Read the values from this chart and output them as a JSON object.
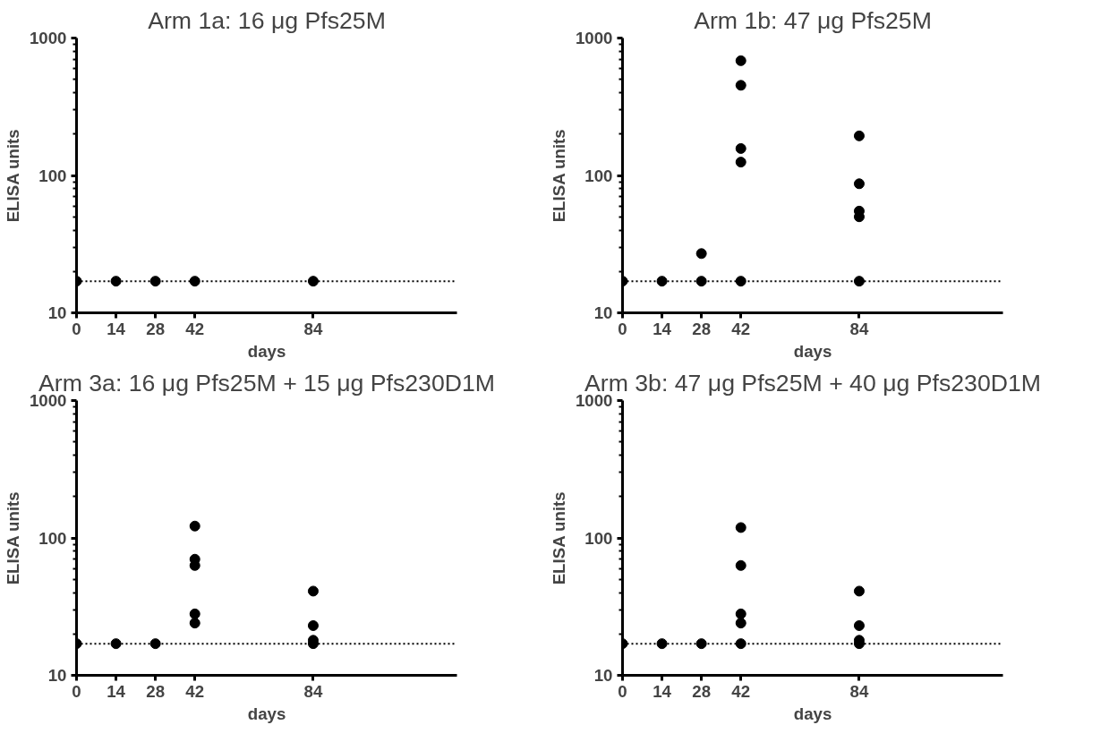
{
  "chart_data": [
    {
      "type": "scatter",
      "title": "Arm 1a: 16 μg Pfs25M",
      "xlabel": "days",
      "ylabel": "ELISA units",
      "log": "y",
      "grid": false,
      "marker": "circle",
      "xlim": [
        0,
        135
      ],
      "xticks": [
        0,
        14,
        28,
        42,
        84
      ],
      "ylim": [
        10,
        1000
      ],
      "yticks": [
        10,
        100,
        1000
      ],
      "series": [
        {
          "color": "#000000",
          "x": [
            0,
            14,
            28,
            42,
            84
          ],
          "values": [
            17,
            17,
            17,
            17,
            17
          ]
        }
      ],
      "ref_lines": [
        {
          "axis": "y",
          "value": 17,
          "line_style": "dotted",
          "color": "#000000"
        }
      ]
    },
    {
      "type": "scatter",
      "title": "Arm 1b: 47 μg Pfs25M",
      "xlabel": "days",
      "ylabel": "ELISA units",
      "log": "y",
      "grid": false,
      "marker": "circle",
      "xlim": [
        0,
        135
      ],
      "xticks": [
        0,
        14,
        28,
        42,
        84
      ],
      "ylim": [
        10,
        1000
      ],
      "yticks": [
        10,
        100,
        1000
      ],
      "series": [
        {
          "color": "#000000",
          "x": [
            0,
            14,
            28,
            28,
            42,
            42,
            42,
            42,
            42,
            84,
            84,
            84,
            84,
            84
          ],
          "values": [
            17,
            17,
            17,
            27,
            17,
            125,
            157,
            453,
            684,
            17,
            50,
            55,
            87,
            194
          ]
        }
      ],
      "ref_lines": [
        {
          "axis": "y",
          "value": 17,
          "line_style": "dotted",
          "color": "#000000"
        }
      ]
    },
    {
      "type": "scatter",
      "title": "Arm 3a: 16 μg Pfs25M + 15 μg Pfs230D1M",
      "xlabel": "days",
      "ylabel": "ELISA units",
      "log": "y",
      "grid": false,
      "marker": "circle",
      "xlim": [
        0,
        135
      ],
      "xticks": [
        0,
        14,
        28,
        42,
        84
      ],
      "ylim": [
        10,
        1000
      ],
      "yticks": [
        10,
        100,
        1000
      ],
      "series": [
        {
          "color": "#000000",
          "x": [
            0,
            14,
            28,
            42,
            42,
            42,
            42,
            42,
            84,
            84,
            84,
            84
          ],
          "values": [
            17,
            17,
            17,
            24,
            28,
            63,
            70,
            122,
            17,
            18,
            23,
            41
          ]
        }
      ],
      "ref_lines": [
        {
          "axis": "y",
          "value": 17,
          "line_style": "dotted",
          "color": "#000000"
        }
      ]
    },
    {
      "type": "scatter",
      "title": "Arm 3b: 47 μg Pfs25M + 40 μg Pfs230D1M",
      "xlabel": "days",
      "ylabel": "ELISA units",
      "log": "y",
      "grid": false,
      "marker": "circle",
      "xlim": [
        0,
        135
      ],
      "xticks": [
        0,
        14,
        28,
        42,
        84
      ],
      "ylim": [
        10,
        1000
      ],
      "yticks": [
        10,
        100,
        1000
      ],
      "series": [
        {
          "color": "#000000",
          "x": [
            0,
            14,
            28,
            42,
            42,
            42,
            42,
            42,
            84,
            84,
            84,
            84
          ],
          "values": [
            17,
            17,
            17,
            17,
            24,
            28,
            63,
            119,
            17,
            18,
            23,
            41
          ]
        }
      ],
      "ref_lines": [
        {
          "axis": "y",
          "value": 17,
          "line_style": "dotted",
          "color": "#000000"
        }
      ]
    }
  ]
}
